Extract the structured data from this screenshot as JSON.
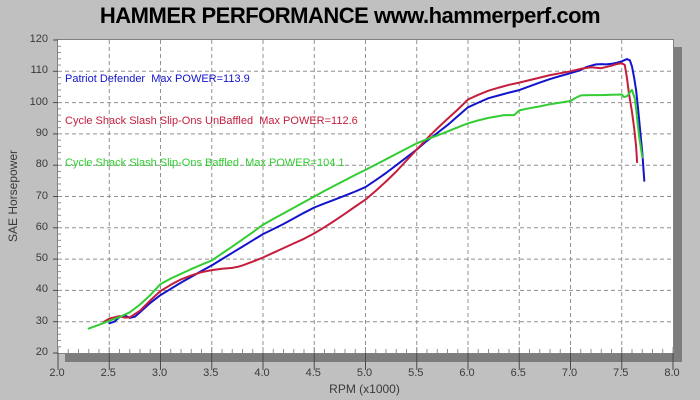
{
  "title": "HAMMER PERFORMANCE www.hammerperf.com",
  "colors": {
    "background": "#c0c0c0",
    "plot_background": "#ffffff",
    "plot_border": "#808080",
    "plot_shadow": "#7d7d7d",
    "gridline": "#909090",
    "tick": "#4a4a4a",
    "tick_text": "#3a3a3a",
    "title_text": "#000000",
    "series_blue": "#1414cc",
    "series_red": "#c41e3c",
    "series_green": "#33cc33"
  },
  "chart_data": {
    "type": "line",
    "title": "HAMMER PERFORMANCE www.hammerperf.com",
    "xlabel": "RPM (x1000)",
    "ylabel": "SAE Horsepower",
    "xlim": [
      2.0,
      8.0
    ],
    "ylim": [
      20,
      120
    ],
    "x_tick_labels": [
      "2.0",
      "2.5",
      "3.0",
      "3.5",
      "4.0",
      "4.5",
      "5.0",
      "5.5",
      "6.0",
      "6.5",
      "7.0",
      "7.5",
      "8.0"
    ],
    "x_tick_values": [
      2.0,
      2.5,
      3.0,
      3.5,
      4.0,
      4.5,
      5.0,
      5.5,
      6.0,
      6.5,
      7.0,
      7.5,
      8.0
    ],
    "y_ticks": [
      20,
      30,
      40,
      50,
      60,
      70,
      80,
      90,
      100,
      110,
      120
    ],
    "x_minor_step": 0.1,
    "y_minor_step": 2,
    "grid": "dashed",
    "legend_position": "top-left-inside",
    "legend": [
      {
        "text": "Patriot Defender  Max POWER=113.9"
      },
      {
        "text": "Cycle Shack Slash Slip-Ons UnBaffled  Max POWER=112.6"
      },
      {
        "text": "Cycle Shack Slash Slip-Ons Baffled  Max POWER=104.1"
      }
    ],
    "series": [
      {
        "name": "Patriot Defender",
        "key": "patriot-defender",
        "color": "#1414cc",
        "max_power": 113.9,
        "points": [
          [
            2.5,
            29.5
          ],
          [
            2.55,
            30.0
          ],
          [
            2.6,
            31.5
          ],
          [
            2.65,
            32.0
          ],
          [
            2.7,
            31.2
          ],
          [
            2.75,
            31.6
          ],
          [
            2.8,
            33.0
          ],
          [
            2.9,
            36.0
          ],
          [
            3.0,
            38.5
          ],
          [
            3.1,
            40.5
          ],
          [
            3.2,
            42.5
          ],
          [
            3.3,
            44.3
          ],
          [
            3.4,
            46.2
          ],
          [
            3.5,
            48.0
          ],
          [
            3.6,
            50.0
          ],
          [
            3.7,
            52.0
          ],
          [
            3.8,
            54.0
          ],
          [
            3.9,
            56.0
          ],
          [
            4.0,
            58.0
          ],
          [
            4.1,
            59.6
          ],
          [
            4.2,
            61.2
          ],
          [
            4.3,
            63.0
          ],
          [
            4.4,
            64.8
          ],
          [
            4.5,
            66.5
          ],
          [
            4.6,
            67.8
          ],
          [
            4.7,
            69.0
          ],
          [
            4.8,
            70.3
          ],
          [
            4.9,
            71.6
          ],
          [
            5.0,
            73.0
          ],
          [
            5.1,
            75.2
          ],
          [
            5.2,
            77.5
          ],
          [
            5.3,
            80.0
          ],
          [
            5.4,
            82.5
          ],
          [
            5.5,
            85.0
          ],
          [
            5.6,
            87.8
          ],
          [
            5.7,
            90.3
          ],
          [
            5.8,
            92.8
          ],
          [
            5.9,
            95.7
          ],
          [
            6.0,
            98.5
          ],
          [
            6.1,
            100.0
          ],
          [
            6.2,
            101.4
          ],
          [
            6.3,
            102.3
          ],
          [
            6.4,
            103.2
          ],
          [
            6.5,
            104.0
          ],
          [
            6.6,
            105.2
          ],
          [
            6.7,
            106.4
          ],
          [
            6.8,
            107.5
          ],
          [
            6.9,
            108.5
          ],
          [
            7.0,
            109.4
          ],
          [
            7.1,
            110.4
          ],
          [
            7.15,
            111.3
          ],
          [
            7.2,
            111.8
          ],
          [
            7.25,
            112.2
          ],
          [
            7.3,
            112.3
          ],
          [
            7.35,
            112.2
          ],
          [
            7.4,
            112.4
          ],
          [
            7.45,
            112.7
          ],
          [
            7.5,
            113.2
          ],
          [
            7.55,
            113.9
          ],
          [
            7.58,
            113.5
          ],
          [
            7.6,
            111.5
          ],
          [
            7.62,
            108.0
          ],
          [
            7.64,
            104.0
          ],
          [
            7.66,
            98.0
          ],
          [
            7.68,
            91.0
          ],
          [
            7.7,
            84.0
          ],
          [
            7.72,
            75.0
          ]
        ]
      },
      {
        "name": "Cycle Shack Slash Slip-Ons UnBaffled",
        "key": "cycle-shack-unbaffled",
        "color": "#c41e3c",
        "max_power": 112.6,
        "points": [
          [
            2.45,
            30.0
          ],
          [
            2.5,
            31.0
          ],
          [
            2.6,
            31.8
          ],
          [
            2.65,
            31.3
          ],
          [
            2.7,
            31.4
          ],
          [
            2.8,
            33.5
          ],
          [
            2.9,
            36.8
          ],
          [
            3.0,
            39.8
          ],
          [
            3.1,
            41.8
          ],
          [
            3.2,
            43.5
          ],
          [
            3.3,
            44.8
          ],
          [
            3.4,
            45.8
          ],
          [
            3.5,
            46.5
          ],
          [
            3.6,
            46.9
          ],
          [
            3.7,
            47.2
          ],
          [
            3.75,
            47.5
          ],
          [
            3.8,
            48.0
          ],
          [
            3.9,
            49.2
          ],
          [
            4.0,
            50.5
          ],
          [
            4.1,
            52.0
          ],
          [
            4.2,
            53.5
          ],
          [
            4.3,
            55.0
          ],
          [
            4.4,
            56.5
          ],
          [
            4.5,
            58.2
          ],
          [
            4.6,
            60.2
          ],
          [
            4.7,
            62.3
          ],
          [
            4.8,
            64.5
          ],
          [
            4.9,
            66.8
          ],
          [
            5.0,
            69.0
          ],
          [
            5.1,
            71.8
          ],
          [
            5.2,
            74.8
          ],
          [
            5.3,
            78.0
          ],
          [
            5.4,
            81.5
          ],
          [
            5.5,
            85.0
          ],
          [
            5.6,
            88.5
          ],
          [
            5.7,
            91.8
          ],
          [
            5.8,
            94.8
          ],
          [
            5.9,
            97.8
          ],
          [
            6.0,
            101.0
          ],
          [
            6.1,
            102.5
          ],
          [
            6.2,
            103.8
          ],
          [
            6.3,
            104.8
          ],
          [
            6.4,
            105.7
          ],
          [
            6.5,
            106.4
          ],
          [
            6.6,
            107.2
          ],
          [
            6.7,
            108.0
          ],
          [
            6.8,
            108.8
          ],
          [
            6.9,
            109.4
          ],
          [
            7.0,
            110.0
          ],
          [
            7.1,
            110.8
          ],
          [
            7.2,
            111.3
          ],
          [
            7.3,
            111.0
          ],
          [
            7.4,
            111.8
          ],
          [
            7.45,
            112.3
          ],
          [
            7.5,
            112.6
          ],
          [
            7.53,
            112.0
          ],
          [
            7.55,
            108.0
          ],
          [
            7.57,
            103.0
          ],
          [
            7.6,
            97.0
          ],
          [
            7.62,
            92.0
          ],
          [
            7.64,
            86.0
          ],
          [
            7.65,
            81.0
          ]
        ]
      },
      {
        "name": "Cycle Shack Slash Slip-Ons Baffled",
        "key": "cycle-shack-baffled",
        "color": "#33cc33",
        "max_power": 104.1,
        "points": [
          [
            2.3,
            27.8
          ],
          [
            2.4,
            29.0
          ],
          [
            2.5,
            30.3
          ],
          [
            2.6,
            31.5
          ],
          [
            2.7,
            33.0
          ],
          [
            2.8,
            35.5
          ],
          [
            2.9,
            38.5
          ],
          [
            3.0,
            42.0
          ],
          [
            3.1,
            43.8
          ],
          [
            3.2,
            45.3
          ],
          [
            3.3,
            46.8
          ],
          [
            3.4,
            48.2
          ],
          [
            3.5,
            49.6
          ],
          [
            3.6,
            51.8
          ],
          [
            3.7,
            54.0
          ],
          [
            3.8,
            56.3
          ],
          [
            3.9,
            58.6
          ],
          [
            4.0,
            61.0
          ],
          [
            4.1,
            62.8
          ],
          [
            4.2,
            64.6
          ],
          [
            4.3,
            66.4
          ],
          [
            4.4,
            68.2
          ],
          [
            4.5,
            70.0
          ],
          [
            4.6,
            71.8
          ],
          [
            4.7,
            73.5
          ],
          [
            4.8,
            75.2
          ],
          [
            4.9,
            76.9
          ],
          [
            5.0,
            78.5
          ],
          [
            5.1,
            80.2
          ],
          [
            5.2,
            81.9
          ],
          [
            5.3,
            83.6
          ],
          [
            5.4,
            85.3
          ],
          [
            5.5,
            87.0
          ],
          [
            5.6,
            88.3
          ],
          [
            5.7,
            89.5
          ],
          [
            5.8,
            90.8
          ],
          [
            5.9,
            92.1
          ],
          [
            6.0,
            93.4
          ],
          [
            6.1,
            94.3
          ],
          [
            6.2,
            95.1
          ],
          [
            6.3,
            95.7
          ],
          [
            6.35,
            96.0
          ],
          [
            6.45,
            96.0
          ],
          [
            6.5,
            97.5
          ],
          [
            6.6,
            98.2
          ],
          [
            6.7,
            98.8
          ],
          [
            6.8,
            99.5
          ],
          [
            6.9,
            100.0
          ],
          [
            7.0,
            100.5
          ],
          [
            7.05,
            101.5
          ],
          [
            7.1,
            102.3
          ],
          [
            7.2,
            102.4
          ],
          [
            7.3,
            102.4
          ],
          [
            7.4,
            102.5
          ],
          [
            7.5,
            102.6
          ],
          [
            7.52,
            101.8
          ],
          [
            7.55,
            102.0
          ],
          [
            7.6,
            104.1
          ],
          [
            7.63,
            101.0
          ],
          [
            7.65,
            95.0
          ],
          [
            7.67,
            89.0
          ],
          [
            7.7,
            82.5
          ]
        ]
      }
    ]
  }
}
